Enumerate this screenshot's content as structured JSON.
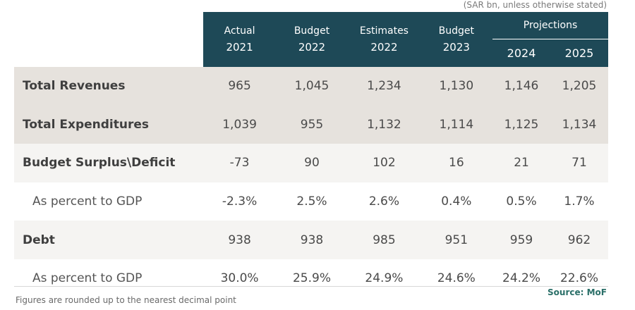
{
  "unit_note": "(SAR bn, unless otherwise stated)",
  "header": {
    "columns": [
      {
        "title": "Actual",
        "year": "2021"
      },
      {
        "title": "Budget",
        "year": "2022"
      },
      {
        "title": "Estimates",
        "year": "2022"
      },
      {
        "title": "Budget",
        "year": "2023"
      }
    ],
    "projections_label": "Projections",
    "projection_years": [
      "2024",
      "2025"
    ]
  },
  "rows": [
    {
      "label": "Total Revenues",
      "values": [
        "965",
        "1,045",
        "1,234",
        "1,130",
        "1,146",
        "1,205"
      ]
    },
    {
      "label": "Total Expenditures",
      "values": [
        "1,039",
        "955",
        "1,132",
        "1,114",
        "1,125",
        "1,134"
      ]
    },
    {
      "label": "Budget Surplus\\Deficit",
      "values": [
        "-73",
        "90",
        "102",
        "16",
        "21",
        "71"
      ]
    },
    {
      "label": "As percent to GDP",
      "values": [
        "-2.3%",
        "2.5%",
        "2.6%",
        "0.4%",
        "0.5%",
        "1.7%"
      ]
    },
    {
      "label": "Debt",
      "values": [
        "938",
        "938",
        "985",
        "951",
        "959",
        "962"
      ]
    },
    {
      "label": "As percent to GDP",
      "values": [
        "30.0%",
        "25.9%",
        "24.9%",
        "24.6%",
        "24.2%",
        "22.6%"
      ]
    }
  ],
  "footnote": "Figures are rounded up to the nearest decimal point",
  "source": "Source: MoF",
  "colors": {
    "header_bg": "#1e4957",
    "row_dark": "#e6e2dd",
    "row_light": "#f5f4f2",
    "source_text": "#2a6f68"
  }
}
